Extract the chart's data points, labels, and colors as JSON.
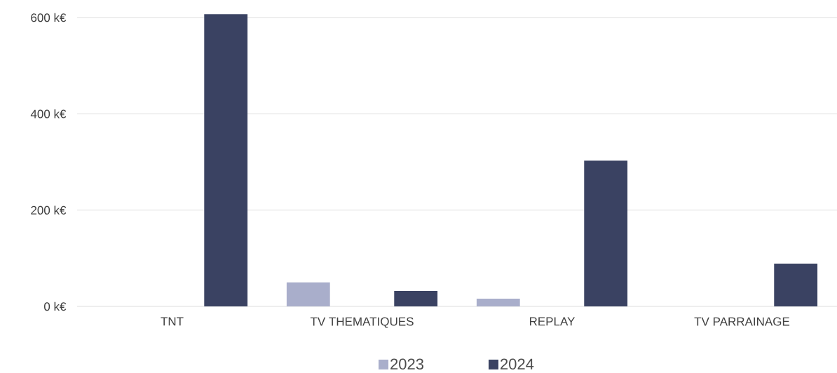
{
  "chart_data": {
    "type": "bar",
    "categories": [
      "TNT",
      "TV THEMATIQUES",
      "REPLAY",
      "TV PARRAINAGE"
    ],
    "series": [
      {
        "name": "2023",
        "color": "#a9aecb",
        "values": [
          0,
          50,
          16,
          0
        ]
      },
      {
        "name": "2024",
        "color": "#3a4262",
        "values": [
          607,
          32,
          303,
          89
        ]
      }
    ],
    "ylim": [
      0,
      610
    ],
    "yticks": [
      {
        "value": 0,
        "label": "0 k€"
      },
      {
        "value": 200,
        "label": "200 k€"
      },
      {
        "value": 400,
        "label": "400 k€"
      },
      {
        "value": 600,
        "label": "600 k€"
      }
    ],
    "grid": "y",
    "legend": "bottom"
  }
}
